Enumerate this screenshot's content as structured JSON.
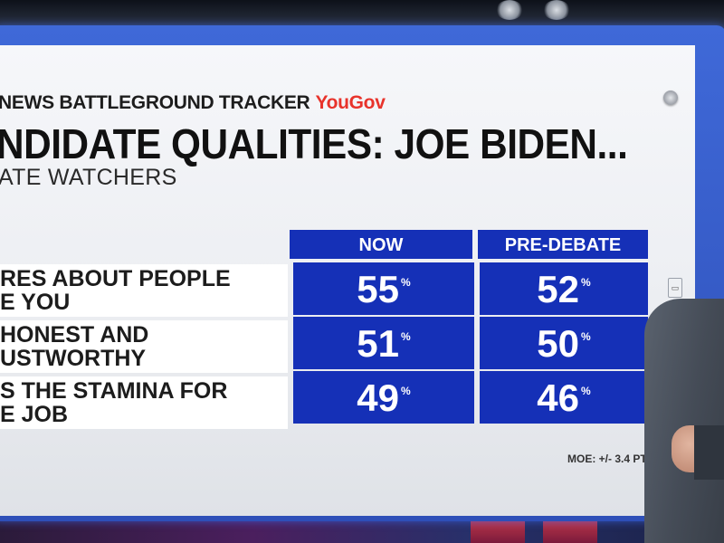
{
  "header": {
    "tracker": "NEWS BATTLEGROUND TRACKER",
    "brand": "YouGov"
  },
  "title": "NDIDATE QUALITIES:  JOE BIDEN...",
  "subtitle": "ATE WATCHERS",
  "columns": [
    "NOW",
    "PRE-DEBATE"
  ],
  "rows": [
    {
      "label_line1": "RES ABOUT PEOPLE",
      "label_line2": "E YOU",
      "now": "55",
      "pre_debate": "52"
    },
    {
      "label_line1": "HONEST AND",
      "label_line2": "USTWORTHY",
      "now": "51",
      "pre_debate": "50"
    },
    {
      "label_line1": "S THE STAMINA FOR",
      "label_line2": "E JOB",
      "now": "49",
      "pre_debate": "46"
    }
  ],
  "percent_sign": "%",
  "moe": "MOE: +/- 3.4 PTS.",
  "side_badge": "▭",
  "colors": {
    "table_blue": "#1530b7",
    "brand_red": "#e8332b",
    "frame_blue": "#3f69d8"
  }
}
